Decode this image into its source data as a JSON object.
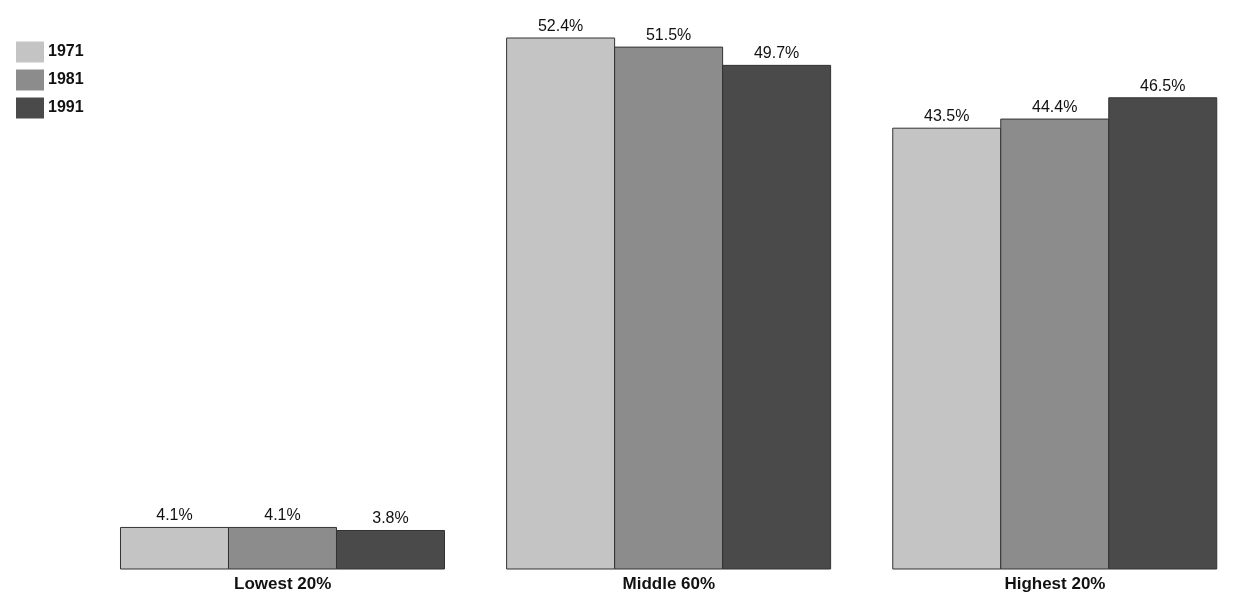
{
  "chart_data": {
    "type": "bar",
    "categories": [
      "Lowest 20%",
      "Middle 60%",
      "Highest 20%"
    ],
    "series": [
      {
        "name": "1971",
        "color": "#c4c4c4",
        "values": [
          4.1,
          52.4,
          43.5
        ],
        "value_labels": [
          "4.1%",
          "52.4%",
          "43.5%"
        ]
      },
      {
        "name": "1981",
        "color": "#8c8c8c",
        "values": [
          4.1,
          51.5,
          44.4
        ],
        "value_labels": [
          "4.1%",
          "51.5%",
          "44.4%"
        ]
      },
      {
        "name": "1991",
        "color": "#4a4a4a",
        "values": [
          3.8,
          49.7,
          46.5
        ],
        "value_labels": [
          "3.8%",
          "49.7%",
          "46.5%"
        ]
      }
    ],
    "legend": "top left"
  }
}
